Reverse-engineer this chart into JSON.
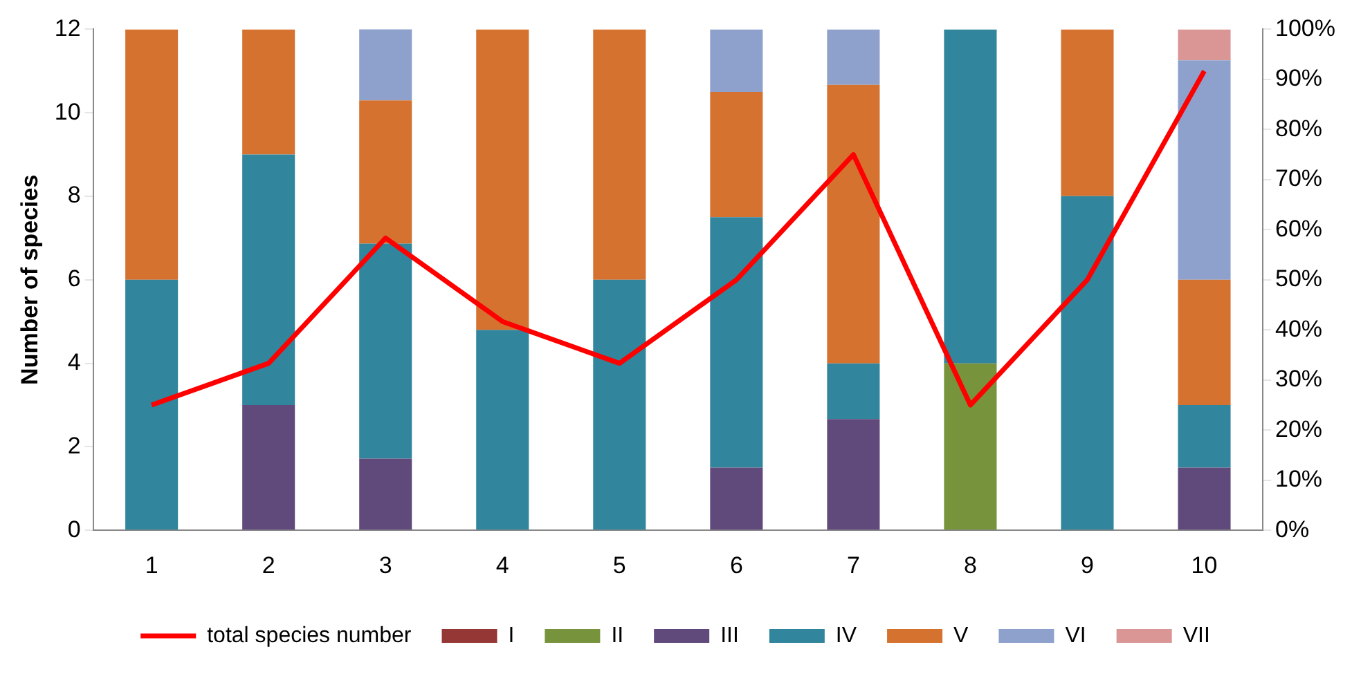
{
  "chart_data": {
    "type": "bar",
    "stacked": true,
    "categories": [
      "1",
      "2",
      "3",
      "4",
      "5",
      "6",
      "7",
      "8",
      "9",
      "10"
    ],
    "ylabel": "Number of species",
    "ylim": [
      0,
      12
    ],
    "yticks": [
      0,
      2,
      4,
      6,
      8,
      10,
      12
    ],
    "y2lim": [
      0,
      100
    ],
    "y2ticks": [
      {
        "value": 0,
        "label": "0%"
      },
      {
        "value": 10,
        "label": "10%"
      },
      {
        "value": 20,
        "label": "20%"
      },
      {
        "value": 30,
        "label": "30%"
      },
      {
        "value": 40,
        "label": "40%"
      },
      {
        "value": 50,
        "label": "50%"
      },
      {
        "value": 60,
        "label": "60%"
      },
      {
        "value": 70,
        "label": "70%"
      },
      {
        "value": 80,
        "label": "80%"
      },
      {
        "value": 90,
        "label": "90%"
      },
      {
        "value": 100,
        "label": "100%"
      }
    ],
    "legend": "bottom",
    "grid": false,
    "marker": "none",
    "series": [
      {
        "name": "I",
        "color": "#953735",
        "axis": "y2",
        "values": [
          0,
          0,
          0,
          0,
          0,
          0,
          0,
          0,
          0,
          0
        ]
      },
      {
        "name": "II",
        "color": "#77933c",
        "axis": "y2",
        "values": [
          0,
          0,
          0,
          0,
          0,
          0,
          0,
          33.3,
          0,
          0
        ]
      },
      {
        "name": "III",
        "color": "#604a7b",
        "axis": "y2",
        "values": [
          0,
          25,
          14.3,
          0,
          0,
          12.5,
          22.2,
          0,
          0,
          12.5
        ]
      },
      {
        "name": "IV",
        "color": "#31859c",
        "axis": "y2",
        "values": [
          50,
          50,
          42.9,
          40,
          50,
          50,
          11.1,
          66.7,
          66.7,
          12.5
        ]
      },
      {
        "name": "V",
        "color": "#d57230",
        "axis": "y2",
        "values": [
          50,
          25,
          28.6,
          60,
          50,
          25,
          55.6,
          0,
          33.3,
          25
        ]
      },
      {
        "name": "VI",
        "color": "#8ea0cc",
        "axis": "y2",
        "values": [
          0,
          0,
          14.3,
          0,
          0,
          12.5,
          11.1,
          0,
          0,
          43.8
        ]
      },
      {
        "name": "VII",
        "color": "#d99694",
        "axis": "y2",
        "values": [
          0,
          0,
          0,
          0,
          0,
          0,
          0,
          0,
          0,
          6.2
        ]
      },
      {
        "name": "total species number",
        "type": "line",
        "color": "#ff0000",
        "axis": "y",
        "values": [
          3,
          4,
          7,
          5,
          4,
          6,
          9,
          3,
          6,
          11
        ]
      }
    ]
  }
}
